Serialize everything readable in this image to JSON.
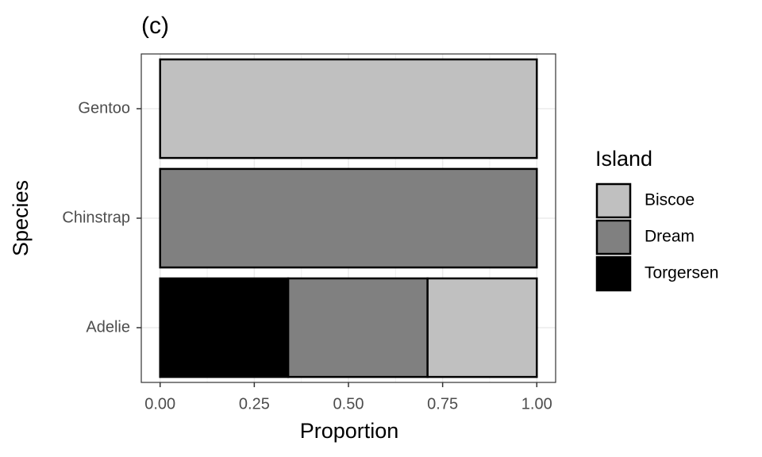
{
  "chart_data": {
    "type": "stacked-bar",
    "orientation": "horizontal",
    "title": "(c)",
    "x_label": "Proportion",
    "y_label": "Species",
    "categories": [
      "Adelie",
      "Chinstrap",
      "Gentoo"
    ],
    "series": [
      {
        "name": "Biscoe",
        "color": "#c0c0c0",
        "values": [
          0.29,
          0,
          1
        ]
      },
      {
        "name": "Dream",
        "color": "#808080",
        "values": [
          0.37,
          1,
          0
        ]
      },
      {
        "name": "Torgersen",
        "color": "#000000",
        "values": [
          0.34,
          0,
          0
        ]
      }
    ],
    "legend_title": "Island",
    "xlim": [
      -0.05,
      1.05
    ],
    "xticks": [
      {
        "value": 0,
        "label": "0.00"
      },
      {
        "value": 0.25,
        "label": "0.25"
      },
      {
        "value": 0.5,
        "label": "0.50"
      },
      {
        "value": 0.75,
        "label": "0.75"
      },
      {
        "value": 1,
        "label": "1.00"
      }
    ],
    "grid": true,
    "legend_position": "right"
  }
}
